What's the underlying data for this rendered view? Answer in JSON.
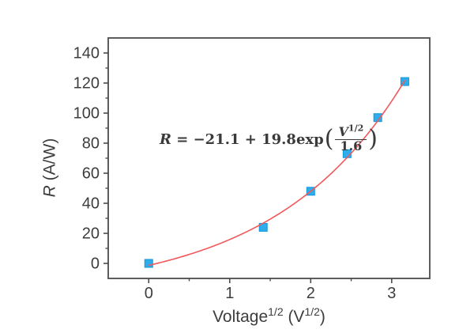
{
  "chart_data": {
    "type": "scatter",
    "title": "",
    "xlabel": "Voltage^1/2 (V^1/2)",
    "ylabel": "R (A/W)",
    "xlabel_parts": {
      "base": "Voltage",
      "sup1": "1/2",
      "mid": " (V",
      "sup2": "1/2",
      "end": ")"
    },
    "ylabel_parts": {
      "var": "R",
      "rest": " (A/W)"
    },
    "xlim": [
      -0.5,
      3.47
    ],
    "ylim": [
      -10,
      150
    ],
    "x_major_ticks": [
      0,
      1,
      2,
      3
    ],
    "x_minor_ticks": [
      0.5,
      1.5,
      2.5
    ],
    "y_major_ticks": [
      0,
      20,
      40,
      60,
      80,
      100,
      120,
      140
    ],
    "y_minor_ticks": [
      10,
      30,
      50,
      70,
      90,
      110,
      130
    ],
    "grid": false,
    "legend": null,
    "series": [
      {
        "name": "responsivity-data-points",
        "marker": "square",
        "x": [
          0,
          1.414,
          2.0,
          2.449,
          2.828,
          3.162
        ],
        "y": [
          0,
          24,
          48,
          73,
          97,
          121
        ]
      }
    ],
    "fit_curve": {
      "name": "exponential-fit",
      "formula": "R = -21.1 + 19.8*exp(x/1.6)",
      "a": -21.1,
      "b": 19.8,
      "c": 1.6,
      "x_start": 0,
      "x_end": 3.162
    },
    "equation": {
      "lhs": "R",
      "body": " = −21.1 + 19.8exp",
      "open_paren": "(",
      "frac_num_var": "V",
      "frac_num_sup": "1/2",
      "frac_den": "1.6",
      "close_paren": ")"
    },
    "colors": {
      "marker_fill": "#2fadea",
      "marker_edge": "#0f97dd",
      "fit_line": "#f2575a",
      "axis": "#4b4b4b",
      "text": "#3d3d3d"
    }
  }
}
